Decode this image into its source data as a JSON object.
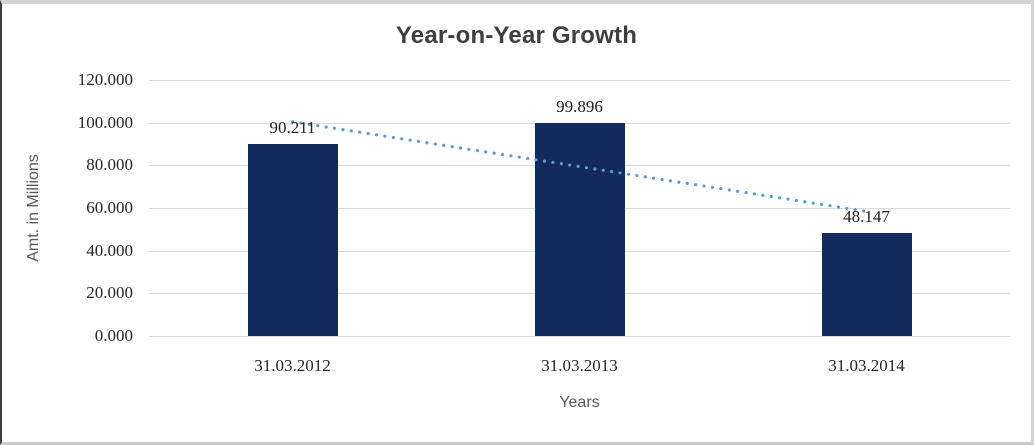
{
  "chart_data": {
    "type": "bar",
    "title": "Year-on-Year Growth",
    "categories": [
      "31.03.2012",
      "31.03.2013",
      "31.03.2014"
    ],
    "values": [
      90.211,
      99.896,
      48.147
    ],
    "data_labels": [
      "90.211",
      "99.896",
      "48.147"
    ],
    "xlabel": "Years",
    "ylabel": "Amt. in Millions",
    "ylim": [
      0,
      120
    ],
    "ytick_step": 20,
    "ytick_labels": [
      "0.000",
      "20.000",
      "40.000",
      "60.000",
      "80.000",
      "100.000",
      "120.000"
    ],
    "grid": true,
    "legend": "none",
    "bar_color": "#122A5C",
    "trendline": {
      "type": "linear",
      "style": "dotted",
      "color": "#5B9BD5",
      "start_value": 100.45,
      "end_value": 58.39
    }
  }
}
